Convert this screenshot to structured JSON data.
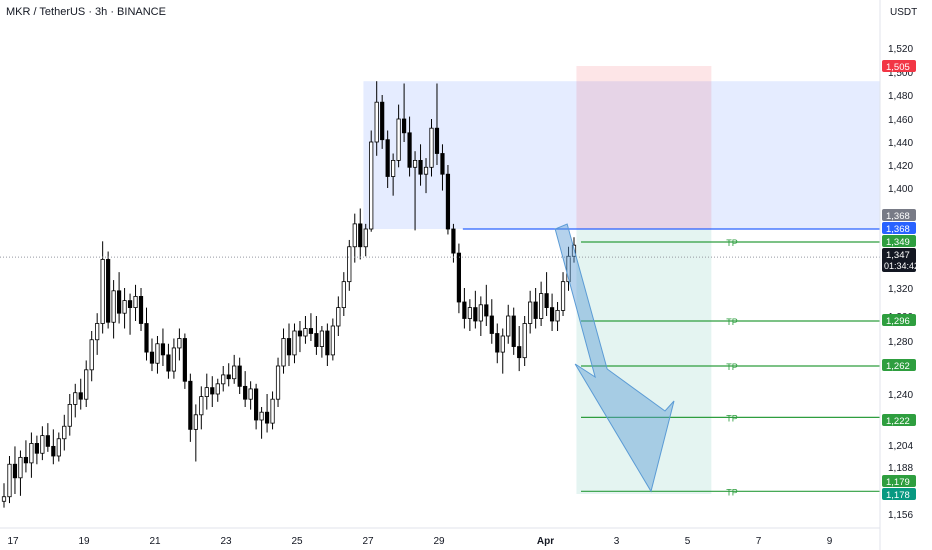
{
  "header": {
    "symbol": "MKR / TetherUS · 3h · BINANCE",
    "currency": "USDT"
  },
  "colors": {
    "up": "#ffffff",
    "down": "#000000",
    "outline": "#000000",
    "entry_zone": "#2962ff",
    "stop_zone": "#f23645",
    "target_zone": "#089981",
    "tp_line": "#2e9e3f",
    "entry_line": "#2962ff",
    "arrow": "#5b9bd5"
  },
  "chart_data": {
    "type": "candlestick",
    "x_ticks": [
      "17",
      "19",
      "21",
      "23",
      "25",
      "27",
      "29",
      "Apr",
      "3",
      "5",
      "7",
      "9"
    ],
    "y_ticks": [
      1520,
      1500,
      1480,
      1460,
      1440,
      1420,
      1400,
      1320,
      1300,
      1280,
      1240,
      1220,
      1204,
      1188,
      1156
    ],
    "y_tick_labels": [
      "1,520",
      "1,500",
      "1,480",
      "1,460",
      "1,440",
      "1,420",
      "1,400",
      "1,320",
      "1,300",
      "1,280",
      "1,240",
      "1,220",
      "1,204",
      "1,188",
      "1,156"
    ],
    "price_labels": [
      {
        "text": "1,505",
        "value": 1505,
        "color": "#f23645"
      },
      {
        "text": "1,368",
        "value": 1368,
        "color": "#787b86"
      },
      {
        "text": "1,368",
        "value": 1368,
        "color": "#2962ff"
      },
      {
        "text": "1,349",
        "value": 1349,
        "color": "#2e9e3f"
      },
      {
        "text": "1,347",
        "value": 1347,
        "color": "#131722",
        "sub": "01:34:42"
      },
      {
        "text": "1,296",
        "value": 1296,
        "color": "#2e9e3f"
      },
      {
        "text": "1,262",
        "value": 1262,
        "color": "#2e9e3f"
      },
      {
        "text": "1,222",
        "value": 1222,
        "color": "#2e9e3f"
      },
      {
        "text": "1,179",
        "value": 1179,
        "color": "#2e9e3f"
      },
      {
        "text": "1,178",
        "value": 1178,
        "color": "#089981"
      }
    ],
    "current_price": 1347,
    "take_profits": [
      {
        "label": "TP",
        "value": 1349
      },
      {
        "label": "TP",
        "value": 1296
      },
      {
        "label": "TP",
        "value": 1262
      },
      {
        "label": "TP",
        "value": 1222
      },
      {
        "label": "TP",
        "value": 1179
      }
    ],
    "entry_level": 1368,
    "supply_zone": {
      "from_date": "26.9",
      "to_date": "end",
      "low": 1368,
      "high": 1492
    },
    "short_position": {
      "from_date": "Apr 1.9",
      "to_date": "Apr 5.7",
      "entry": 1368,
      "stop": 1505,
      "target": 1178
    },
    "arrow": {
      "from_date": "Apr 1.3",
      "from_price": 1368,
      "to_date": "Apr 4",
      "to_price": 1179
    },
    "candles": [
      [
        1170,
        1182,
        1163,
        1175
      ],
      [
        1175,
        1196,
        1168,
        1190
      ],
      [
        1190,
        1203,
        1178,
        1184
      ],
      [
        1184,
        1200,
        1176,
        1195
      ],
      [
        1195,
        1207,
        1186,
        1191
      ],
      [
        1191,
        1212,
        1184,
        1205
      ],
      [
        1205,
        1210,
        1190,
        1198
      ],
      [
        1198,
        1216,
        1193,
        1210
      ],
      [
        1210,
        1218,
        1199,
        1203
      ],
      [
        1203,
        1214,
        1190,
        1196
      ],
      [
        1196,
        1212,
        1192,
        1208
      ],
      [
        1208,
        1224,
        1200,
        1216
      ],
      [
        1216,
        1240,
        1210,
        1232
      ],
      [
        1232,
        1248,
        1222,
        1241
      ],
      [
        1241,
        1252,
        1228,
        1236
      ],
      [
        1236,
        1266,
        1230,
        1259
      ],
      [
        1259,
        1288,
        1250,
        1281
      ],
      [
        1281,
        1302,
        1270,
        1294
      ],
      [
        1294,
        1350,
        1286,
        1338
      ],
      [
        1338,
        1343,
        1290,
        1295
      ],
      [
        1295,
        1325,
        1282,
        1318
      ],
      [
        1318,
        1330,
        1294,
        1302
      ],
      [
        1302,
        1320,
        1290,
        1311
      ],
      [
        1311,
        1316,
        1285,
        1306
      ],
      [
        1306,
        1322,
        1296,
        1314
      ],
      [
        1314,
        1320,
        1288,
        1294
      ],
      [
        1294,
        1306,
        1266,
        1272
      ],
      [
        1272,
        1282,
        1258,
        1264
      ],
      [
        1264,
        1284,
        1256,
        1278
      ],
      [
        1278,
        1290,
        1262,
        1270
      ],
      [
        1270,
        1278,
        1252,
        1258
      ],
      [
        1258,
        1282,
        1252,
        1275
      ],
      [
        1275,
        1290,
        1266,
        1282
      ],
      [
        1282,
        1286,
        1244,
        1250
      ],
      [
        1250,
        1256,
        1206,
        1214
      ],
      [
        1214,
        1232,
        1192,
        1224
      ],
      [
        1224,
        1246,
        1214,
        1238
      ],
      [
        1238,
        1256,
        1228,
        1245
      ],
      [
        1245,
        1254,
        1230,
        1240
      ],
      [
        1240,
        1252,
        1234,
        1248
      ],
      [
        1248,
        1262,
        1242,
        1255
      ],
      [
        1255,
        1264,
        1246,
        1252
      ],
      [
        1252,
        1270,
        1248,
        1262
      ],
      [
        1262,
        1268,
        1240,
        1246
      ],
      [
        1246,
        1258,
        1230,
        1236
      ],
      [
        1236,
        1250,
        1228,
        1244
      ],
      [
        1244,
        1248,
        1214,
        1220
      ],
      [
        1220,
        1230,
        1208,
        1226
      ],
      [
        1226,
        1240,
        1212,
        1218
      ],
      [
        1218,
        1242,
        1214,
        1236
      ],
      [
        1236,
        1268,
        1230,
        1262
      ],
      [
        1262,
        1290,
        1256,
        1282
      ],
      [
        1282,
        1294,
        1262,
        1270
      ],
      [
        1270,
        1294,
        1264,
        1288
      ],
      [
        1288,
        1296,
        1272,
        1284
      ],
      [
        1284,
        1300,
        1278,
        1290
      ],
      [
        1290,
        1302,
        1280,
        1286
      ],
      [
        1286,
        1300,
        1270,
        1276
      ],
      [
        1276,
        1292,
        1268,
        1288
      ],
      [
        1288,
        1294,
        1262,
        1270
      ],
      [
        1270,
        1298,
        1266,
        1292
      ],
      [
        1292,
        1314,
        1284,
        1306
      ],
      [
        1306,
        1330,
        1300,
        1324
      ],
      [
        1324,
        1352,
        1318,
        1346
      ],
      [
        1346,
        1380,
        1336,
        1372
      ],
      [
        1372,
        1384,
        1338,
        1346
      ],
      [
        1346,
        1372,
        1340,
        1368
      ],
      [
        1368,
        1450,
        1364,
        1440
      ],
      [
        1440,
        1492,
        1428,
        1474
      ],
      [
        1474,
        1480,
        1434,
        1442
      ],
      [
        1442,
        1450,
        1400,
        1410
      ],
      [
        1410,
        1430,
        1394,
        1424
      ],
      [
        1424,
        1472,
        1418,
        1460
      ],
      [
        1460,
        1490,
        1440,
        1448
      ],
      [
        1448,
        1462,
        1410,
        1418
      ],
      [
        1418,
        1432,
        1366,
        1424
      ],
      [
        1424,
        1438,
        1402,
        1412
      ],
      [
        1412,
        1426,
        1396,
        1418
      ],
      [
        1418,
        1460,
        1410,
        1452
      ],
      [
        1452,
        1490,
        1420,
        1430
      ],
      [
        1430,
        1438,
        1398,
        1412
      ],
      [
        1412,
        1420,
        1360,
        1368
      ],
      [
        1368,
        1372,
        1336,
        1342
      ],
      [
        1342,
        1348,
        1302,
        1310
      ],
      [
        1310,
        1320,
        1290,
        1298
      ],
      [
        1298,
        1312,
        1288,
        1306
      ],
      [
        1306,
        1318,
        1290,
        1296
      ],
      [
        1296,
        1314,
        1284,
        1308
      ],
      [
        1308,
        1322,
        1292,
        1300
      ],
      [
        1300,
        1312,
        1278,
        1286
      ],
      [
        1286,
        1294,
        1264,
        1272
      ],
      [
        1272,
        1290,
        1256,
        1284
      ],
      [
        1284,
        1308,
        1278,
        1300
      ],
      [
        1300,
        1306,
        1270,
        1276
      ],
      [
        1276,
        1292,
        1258,
        1268
      ],
      [
        1268,
        1300,
        1262,
        1294
      ],
      [
        1294,
        1318,
        1286,
        1310
      ],
      [
        1310,
        1320,
        1290,
        1298
      ],
      [
        1298,
        1324,
        1292,
        1316
      ],
      [
        1316,
        1330,
        1300,
        1306
      ],
      [
        1306,
        1316,
        1288,
        1296
      ],
      [
        1296,
        1310,
        1288,
        1304
      ],
      [
        1304,
        1330,
        1300,
        1324
      ],
      [
        1324,
        1346,
        1318,
        1340
      ],
      [
        1340,
        1356,
        1336,
        1347
      ]
    ]
  }
}
